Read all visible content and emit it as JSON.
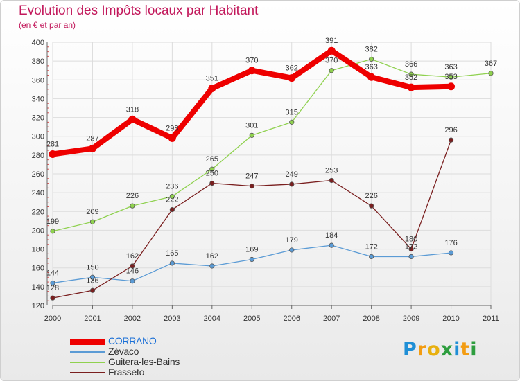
{
  "header": {
    "title": "Evolution des Impôts locaux par Habitant",
    "subtitle": "(en € et par an)"
  },
  "brand": {
    "letters": [
      {
        "ch": "P",
        "color": "#1f8fd6"
      },
      {
        "ch": "r",
        "color": "#f39c12"
      },
      {
        "ch": "o",
        "color": "#e8b00f"
      },
      {
        "ch": "x",
        "color": "#2e9e3f"
      },
      {
        "ch": "i",
        "color": "#1f8fd6"
      },
      {
        "ch": "t",
        "color": "#f39c12"
      },
      {
        "ch": "i",
        "color": "#2e9e3f"
      }
    ]
  },
  "chart_data": {
    "type": "line",
    "title": "Evolution des Impôts locaux par Habitant",
    "subtitle": "(en € et par an)",
    "xlabel": "",
    "ylabel": "",
    "x": [
      "2000",
      "2001",
      "2002",
      "2003",
      "2004",
      "2005",
      "2006",
      "2007",
      "2008",
      "2009",
      "2010",
      "2011"
    ],
    "ylim": [
      120,
      400
    ],
    "yticks": [
      120,
      140,
      160,
      180,
      200,
      220,
      240,
      260,
      280,
      300,
      320,
      340,
      360,
      380,
      400
    ],
    "grid": true,
    "legend_position": "bottom-left",
    "series": [
      {
        "name": "CORRANO",
        "color": "#ee0000",
        "values": [
          281,
          287,
          318,
          298,
          351,
          370,
          362,
          391,
          363,
          352,
          353,
          null
        ],
        "labels": [
          "281",
          "287",
          "318",
          "298",
          "351",
          "370",
          "362",
          "391",
          "363",
          "352",
          "353",
          ""
        ]
      },
      {
        "name": "Zévaco",
        "color": "#5b9bd5",
        "values": [
          144,
          150,
          146,
          165,
          162,
          169,
          179,
          184,
          172,
          172,
          176,
          null
        ],
        "labels": [
          "144",
          "150",
          "146",
          "165",
          "162",
          "169",
          "179",
          "184",
          "172",
          "172",
          "176",
          ""
        ]
      },
      {
        "name": "Guitera-les-Bains",
        "color": "#8fd14f",
        "values": [
          199,
          209,
          226,
          236,
          265,
          301,
          315,
          370,
          382,
          366,
          363,
          367
        ],
        "labels": [
          "199",
          "209",
          "226",
          "236",
          "265",
          "301",
          "315",
          "370",
          "382",
          "366",
          "363",
          "367"
        ]
      },
      {
        "name": "Frasseto",
        "color": "#7a1f1f",
        "values": [
          128,
          136,
          162,
          222,
          250,
          247,
          249,
          253,
          226,
          180,
          296,
          null
        ],
        "labels": [
          "128",
          "136",
          "162",
          "222",
          "250",
          "247",
          "249",
          "253",
          "226",
          "180",
          "296",
          ""
        ]
      }
    ]
  }
}
